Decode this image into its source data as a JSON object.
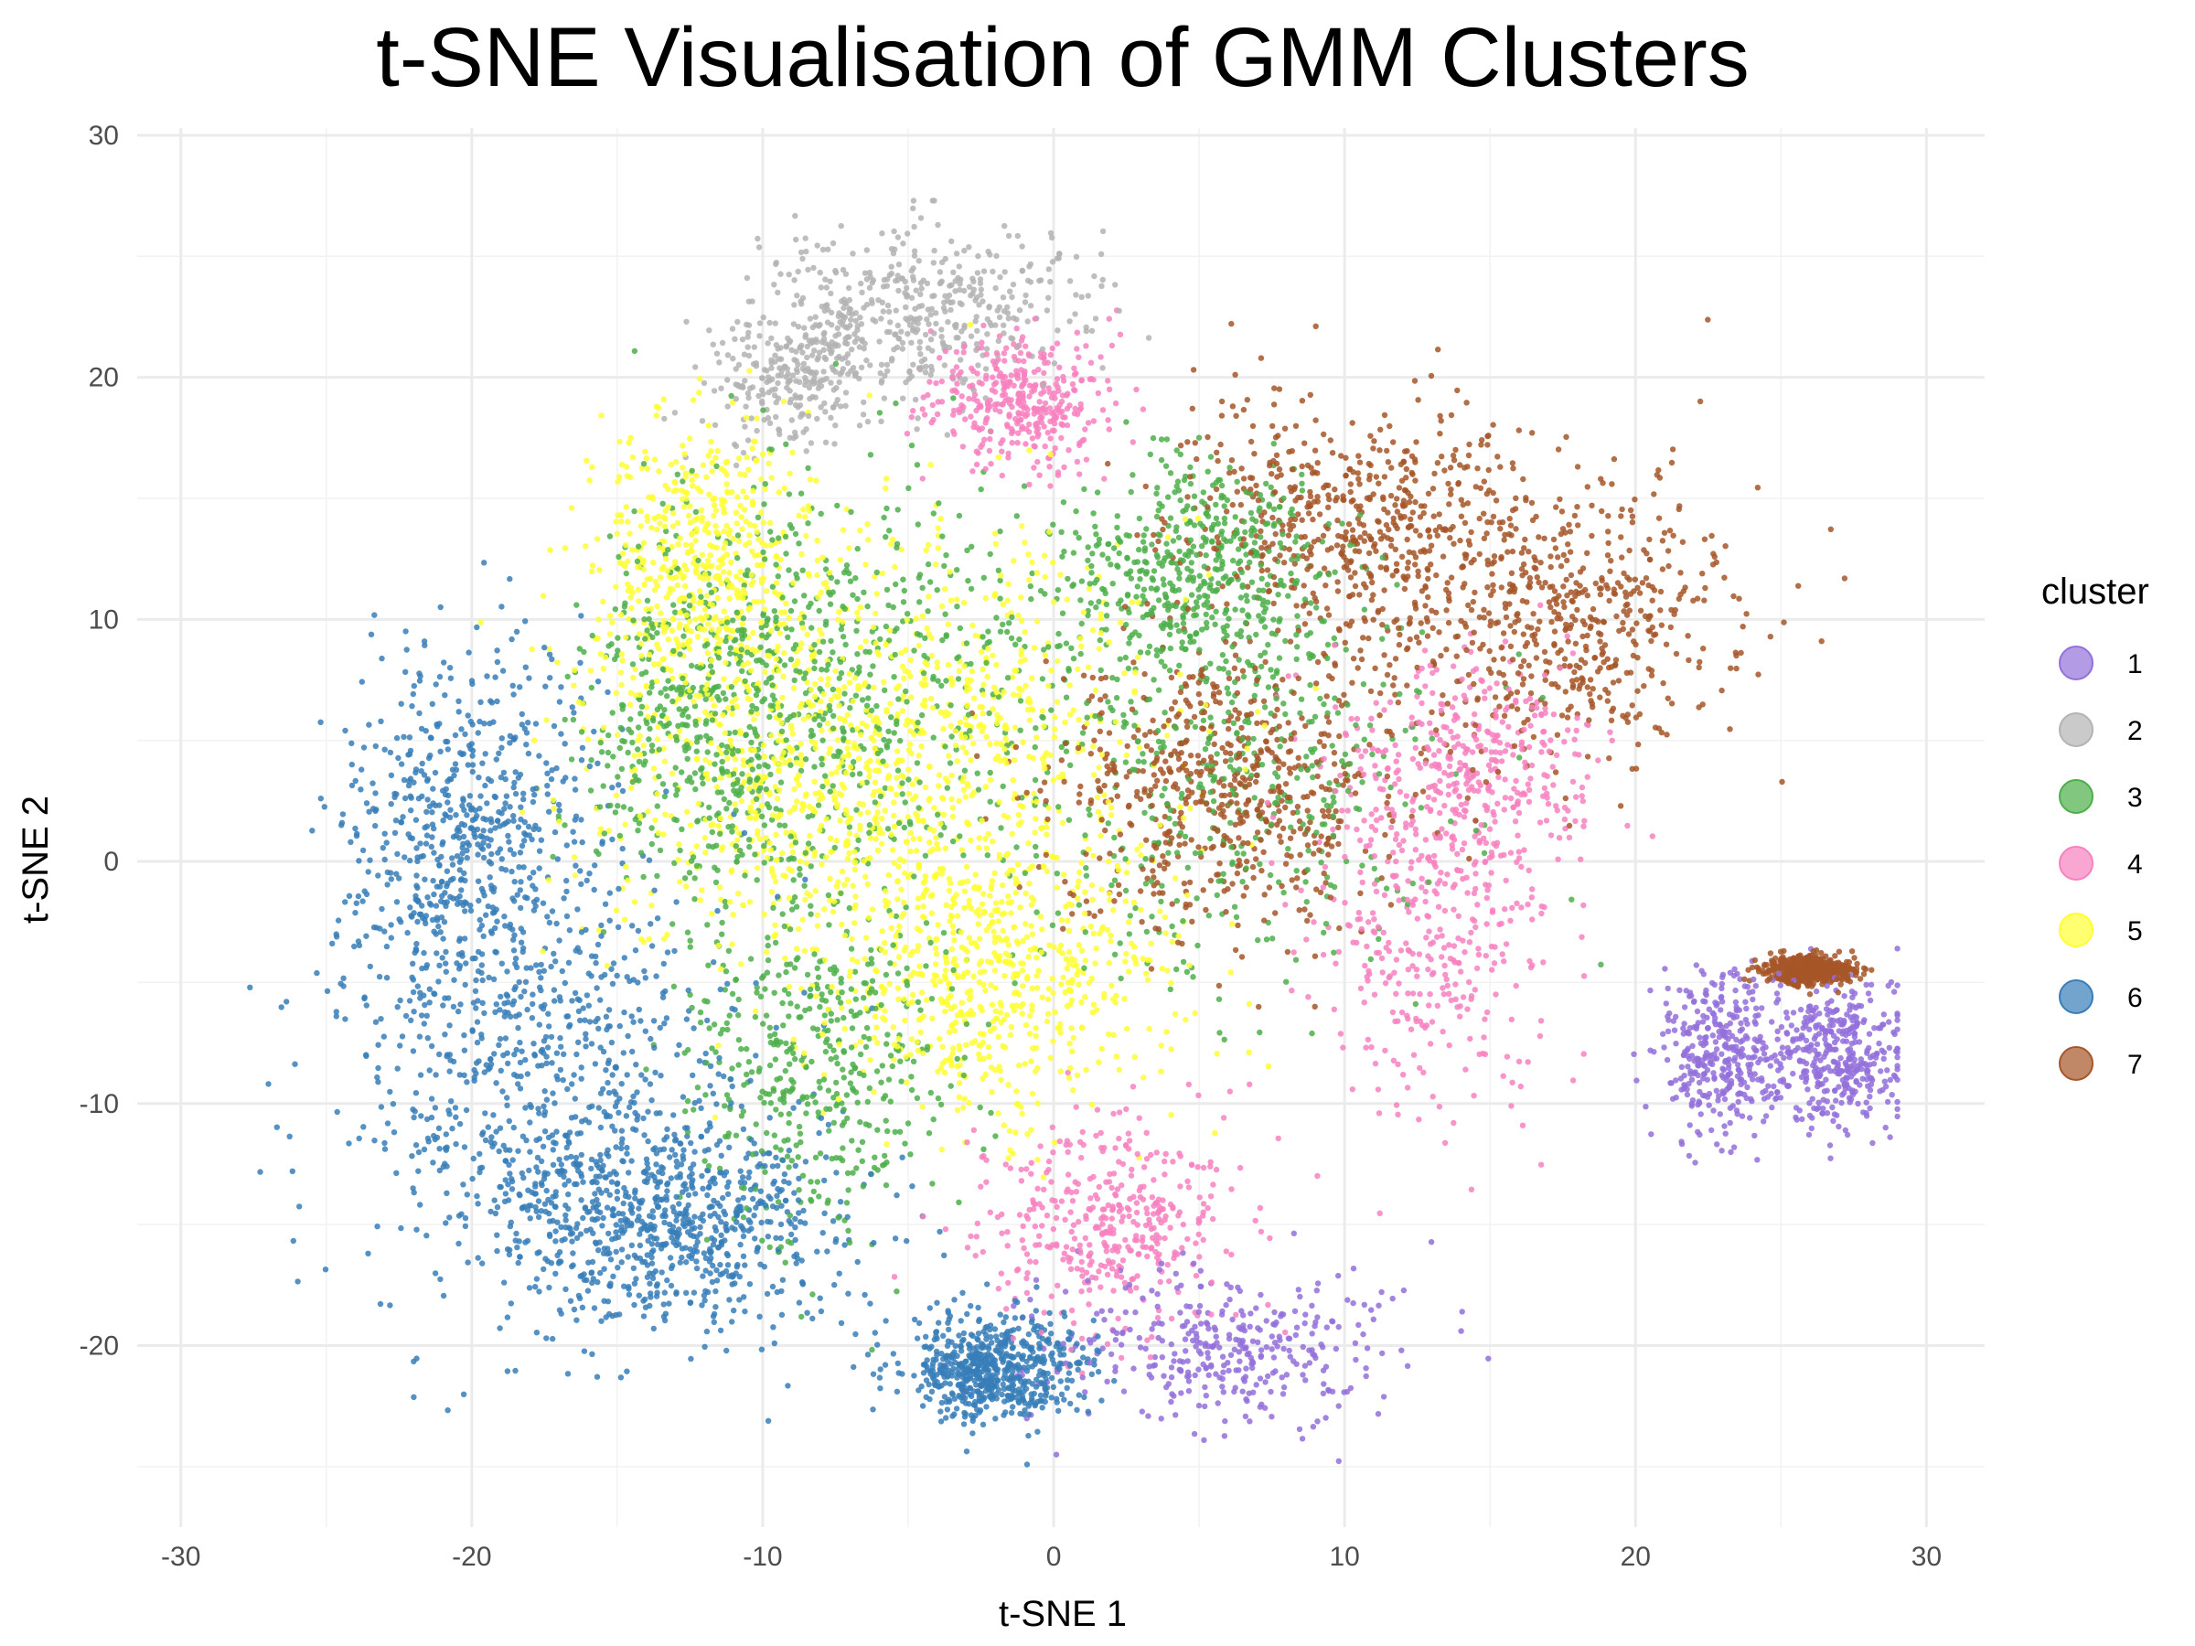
{
  "chart_data": {
    "type": "scatter",
    "title": "t-SNE Visualisation of GMM Clusters",
    "xlabel": "t-SNE 1",
    "ylabel": "t-SNE 2",
    "xlim": [
      -31.5,
      32
    ],
    "ylim": [
      -27.5,
      30.3
    ],
    "x_ticks": [
      -30,
      -20,
      -10,
      0,
      10,
      20,
      30
    ],
    "y_ticks": [
      -20,
      -10,
      0,
      10,
      20,
      30
    ],
    "x_tick_labels": [
      "-30",
      "-20",
      "-10",
      "0",
      "10",
      "20",
      "30"
    ],
    "y_tick_labels": [
      "-20",
      "-10",
      "0",
      "10",
      "20",
      "30"
    ],
    "grid": true,
    "legend_title": "cluster",
    "legend_position": "right",
    "series": [
      {
        "name": "1",
        "color": "#9370DB",
        "centers": [
          [
            6,
            -20
          ],
          [
            27,
            -8
          ],
          [
            23,
            -8
          ]
        ],
        "spread": [
          [
            4,
            2
          ],
          [
            1.6,
            2
          ],
          [
            1.4,
            2.2
          ]
        ],
        "count": 1100
      },
      {
        "name": "2",
        "color": "#B3B3B3",
        "centers": [
          [
            -3,
            23.5
          ],
          [
            -6,
            22
          ],
          [
            -9,
            20
          ]
        ],
        "spread": [
          [
            3.5,
            2
          ],
          [
            3,
            2.5
          ],
          [
            2,
            2
          ]
        ],
        "count": 700
      },
      {
        "name": "3",
        "color": "#4DAF4A",
        "centers": [
          [
            -6,
            8
          ],
          [
            6,
            4
          ],
          [
            -8,
            -8
          ],
          [
            5,
            12
          ],
          [
            -12,
            6
          ]
        ],
        "spread": [
          [
            5,
            6
          ],
          [
            5,
            6
          ],
          [
            3,
            5
          ],
          [
            3,
            3
          ],
          [
            3,
            5
          ]
        ],
        "count": 2400
      },
      {
        "name": "4",
        "color": "#F781BF",
        "centers": [
          [
            13,
            -3
          ],
          [
            14,
            4
          ],
          [
            2,
            -15
          ],
          [
            -1,
            19
          ]
        ],
        "spread": [
          [
            3,
            5
          ],
          [
            3,
            3
          ],
          [
            3,
            3
          ],
          [
            2,
            1.8
          ]
        ],
        "count": 1500
      },
      {
        "name": "5",
        "color": "#FFFF33",
        "centers": [
          [
            -2,
            -5
          ],
          [
            -9,
            3
          ],
          [
            -3,
            5
          ],
          [
            -12,
            12
          ]
        ],
        "spread": [
          [
            4,
            4
          ],
          [
            5,
            5
          ],
          [
            5,
            6
          ],
          [
            2.5,
            4
          ]
        ],
        "count": 2300
      },
      {
        "name": "6",
        "color": "#377EB8",
        "centers": [
          [
            -17,
            -10
          ],
          [
            -20,
            0
          ],
          [
            -13,
            -15
          ],
          [
            -2,
            -21
          ]
        ],
        "spread": [
          [
            5,
            6
          ],
          [
            3,
            6
          ],
          [
            4,
            3
          ],
          [
            2,
            1.5
          ]
        ],
        "count": 2700
      },
      {
        "name": "7",
        "color": "#A65628",
        "centers": [
          [
            18,
            10
          ],
          [
            10,
            14
          ],
          [
            6,
            3
          ],
          [
            26,
            -4.5
          ]
        ],
        "spread": [
          [
            4,
            4
          ],
          [
            4,
            3.5
          ],
          [
            4,
            4
          ],
          [
            1,
            0.4
          ]
        ],
        "count": 2300
      }
    ]
  }
}
